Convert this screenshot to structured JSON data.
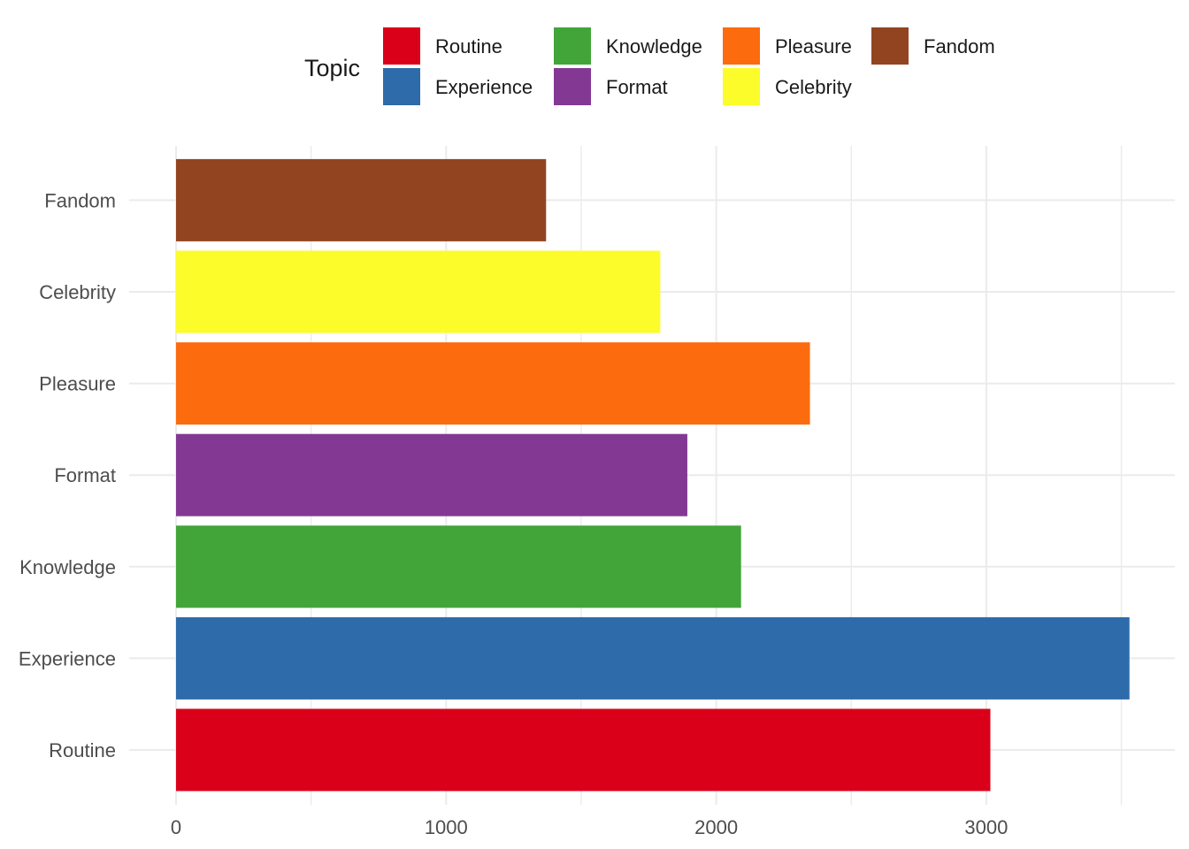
{
  "chart_data": {
    "type": "bar",
    "orientation": "horizontal",
    "categories": [
      "Routine",
      "Experience",
      "Knowledge",
      "Format",
      "Pleasure",
      "Celebrity",
      "Fandom"
    ],
    "values": [
      3015,
      3530,
      2092,
      1893,
      2347,
      1793,
      1370
    ],
    "colors": [
      "#db001a",
      "#2e6baa",
      "#42a53a",
      "#833993",
      "#fc6b0e",
      "#fcfc2a",
      "#924421"
    ],
    "xlim": [
      0,
      3530
    ],
    "x_ticks": [
      0,
      1000,
      2000,
      3000
    ],
    "x_tick_labels": [
      "0",
      "1000",
      "2000",
      "3000"
    ],
    "x_minor_ticks": [
      500,
      1500,
      2500,
      3500
    ],
    "grid": true,
    "legend": {
      "title": "Topic",
      "position": "top",
      "items": [
        "Routine",
        "Experience",
        "Knowledge",
        "Format",
        "Pleasure",
        "Celebrity",
        "Fandom"
      ]
    }
  }
}
